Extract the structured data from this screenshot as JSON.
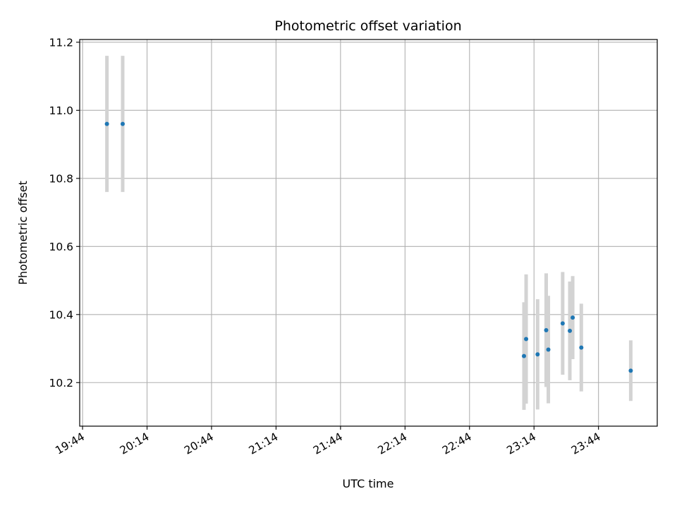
{
  "chart_data": {
    "type": "scatter",
    "title": "Photometric offset variation",
    "xlabel": "UTC time",
    "ylabel": "Photometric offset",
    "grid": true,
    "xlim": [
      "19:42:40",
      "24:11:20"
    ],
    "ylim": [
      10.072,
      11.208
    ],
    "x_ticks": [
      "19:44",
      "20:14",
      "20:44",
      "21:14",
      "21:44",
      "22:14",
      "22:44",
      "23:14",
      "23:44"
    ],
    "y_ticks": [
      "10.2",
      "10.4",
      "10.6",
      "10.8",
      "11.0",
      "11.2"
    ],
    "colors": {
      "marker": "#1f77b4",
      "errorbar": "#d3d3d3",
      "grid": "#b0b0b0"
    },
    "points": [
      {
        "x": "19:55:20",
        "y": 10.96,
        "yerr": 0.2
      },
      {
        "x": "20:02:40",
        "y": 10.96,
        "yerr": 0.2
      },
      {
        "x": "23:09:20",
        "y": 10.278,
        "yerr": 0.158
      },
      {
        "x": "23:10:20",
        "y": 10.328,
        "yerr": 0.19
      },
      {
        "x": "23:15:40",
        "y": 10.283,
        "yerr": 0.162
      },
      {
        "x": "23:19:40",
        "y": 10.354,
        "yerr": 0.167
      },
      {
        "x": "23:20:40",
        "y": 10.297,
        "yerr": 0.158
      },
      {
        "x": "23:27:20",
        "y": 10.374,
        "yerr": 0.151
      },
      {
        "x": "23:30:40",
        "y": 10.352,
        "yerr": 0.145
      },
      {
        "x": "23:32:00",
        "y": 10.391,
        "yerr": 0.122
      },
      {
        "x": "23:36:00",
        "y": 10.303,
        "yerr": 0.129
      },
      {
        "x": "23:59:00",
        "y": 10.235,
        "yerr": 0.089
      }
    ]
  }
}
